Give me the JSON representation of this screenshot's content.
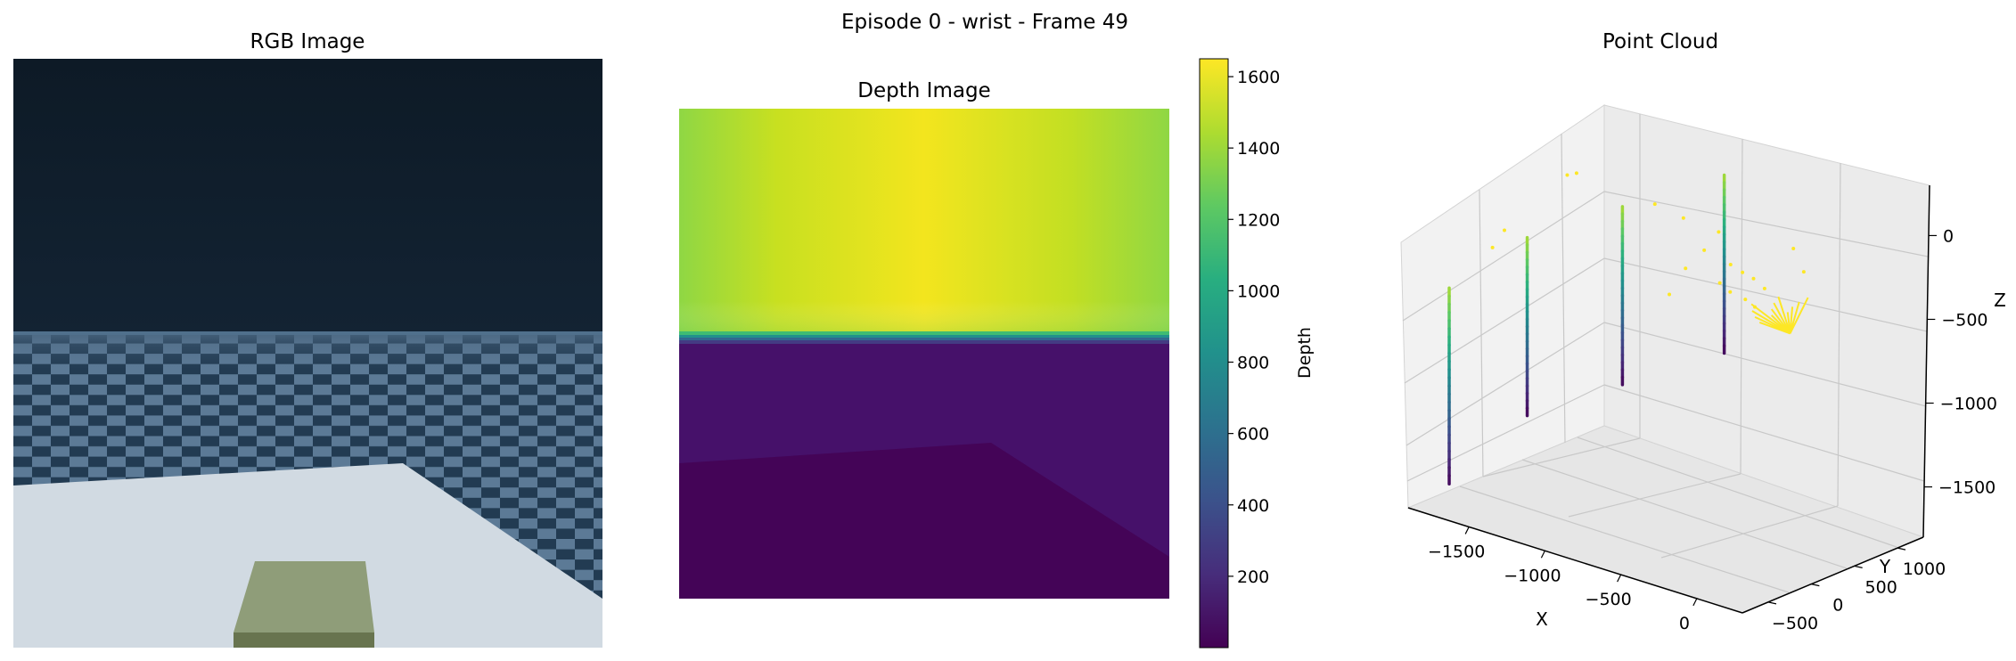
{
  "figure": {
    "suptitle": "Episode 0 - wrist - Frame 49"
  },
  "chart_data": [
    {
      "type": "image",
      "title": "RGB Image",
      "colors": {
        "sky_top": "#0d1a26",
        "sky_bottom": "#122232",
        "floor_dark": "#20384f",
        "floor_light": "#5f7d99",
        "table": "#d1dae2",
        "object_top": "#8f9d79",
        "object_front": "#68744f"
      }
    },
    {
      "type": "heatmap",
      "title": "Depth Image",
      "colorbar": {
        "label": "Depth",
        "range": [
          0,
          1650
        ],
        "ticks": [
          200,
          400,
          600,
          800,
          1000,
          1200,
          1400,
          1600
        ],
        "colormap": "viridis"
      },
      "regions": {
        "upper_depth_center": 1640,
        "upper_depth_edges": 1400,
        "lower_depth_near_horizon": 100,
        "lower_depth_bottom": 20
      }
    },
    {
      "type": "scatter3d",
      "title": "Point Cloud",
      "xlabel": "X",
      "ylabel": "Y",
      "zlabel": "Z",
      "x_ticks": [
        -1500,
        -1000,
        -500,
        0
      ],
      "y_ticks": [
        -500,
        0,
        500,
        1000
      ],
      "z_ticks": [
        0,
        -500,
        -1000,
        -1500
      ],
      "columns": [
        {
          "x": -1800,
          "y": -500,
          "z_top": -600,
          "z_bottom": -1700
        },
        {
          "x": -1400,
          "y": -300,
          "z_top": -250,
          "z_bottom": -1250
        },
        {
          "x": -1000,
          "y": 100,
          "z_top": -50,
          "z_bottom": -1050
        },
        {
          "x": -500,
          "y": 400,
          "z_top": 200,
          "z_bottom": -800
        }
      ],
      "colormap": "viridis",
      "grid": true
    }
  ]
}
